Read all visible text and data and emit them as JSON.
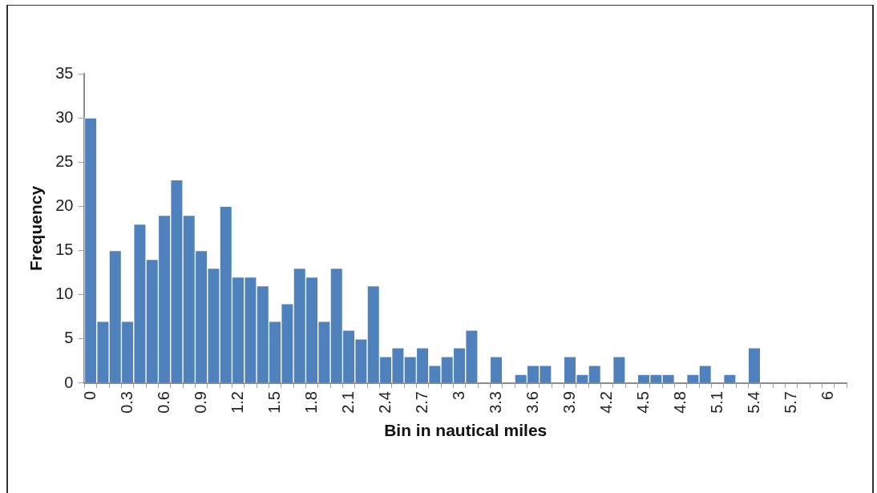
{
  "chart_data": {
    "type": "bar",
    "xlabel": "Bin in nautical miles",
    "ylabel": "Frequency",
    "categories": [
      "0",
      null,
      null,
      "0.3",
      null,
      null,
      "0.6",
      null,
      null,
      "0.9",
      null,
      null,
      "1.2",
      null,
      null,
      "1.5",
      null,
      null,
      "1.8",
      null,
      null,
      "2.1",
      null,
      null,
      "2.4",
      null,
      null,
      "2.7",
      null,
      null,
      "3",
      null,
      null,
      "3.3",
      null,
      null,
      "3.6",
      null,
      null,
      "3.9",
      null,
      null,
      "4.2",
      null,
      null,
      "4.5",
      null,
      null,
      "4.8",
      null,
      null,
      "5.1",
      null,
      null,
      "5.4",
      null,
      null,
      "5.7",
      null,
      null,
      "6",
      null
    ],
    "series": [
      {
        "color": "#4f81bd",
        "values": [
          30,
          7,
          15,
          7,
          18,
          14,
          19,
          23,
          19,
          15,
          13,
          20,
          12,
          12,
          11,
          7,
          9,
          13,
          12,
          7,
          13,
          6,
          5,
          11,
          3,
          4,
          3,
          4,
          2,
          3,
          4,
          6,
          0,
          3,
          0,
          1,
          2,
          2,
          0,
          3,
          1,
          2,
          0,
          3,
          0,
          1,
          1,
          1,
          0,
          1,
          2,
          0,
          1,
          0,
          4,
          0,
          0,
          0,
          0,
          0,
          0,
          0
        ]
      }
    ],
    "ylim": [
      0,
      35
    ],
    "yticks": [
      0,
      5,
      10,
      15,
      20,
      25,
      30,
      35
    ],
    "grid": false,
    "legend": false
  }
}
